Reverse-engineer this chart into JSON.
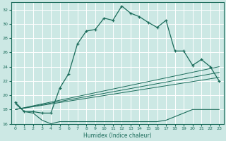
{
  "xlabel": "Humidex (Indice chaleur)",
  "bg_color": "#cce8e4",
  "grid_color": "#ffffff",
  "line_color": "#1a6b5a",
  "xlim": [
    -0.5,
    23.5
  ],
  "ylim": [
    16,
    33
  ],
  "yticks": [
    16,
    18,
    20,
    22,
    24,
    26,
    28,
    30,
    32
  ],
  "xticks": [
    0,
    1,
    2,
    3,
    4,
    5,
    6,
    7,
    8,
    9,
    10,
    11,
    12,
    13,
    14,
    15,
    16,
    17,
    18,
    19,
    20,
    21,
    22,
    23
  ],
  "curve1_x": [
    0,
    1,
    2,
    3,
    4,
    5,
    6,
    7,
    8,
    9,
    10,
    11,
    12,
    13,
    14,
    15,
    16,
    17,
    18,
    19,
    20,
    21,
    22,
    23
  ],
  "curve1_y": [
    19,
    17.7,
    17.7,
    17.5,
    17.5,
    21.0,
    23.0,
    27.2,
    29.0,
    29.2,
    30.8,
    30.5,
    32.5,
    31.5,
    31.0,
    30.2,
    29.5,
    30.5,
    26.2,
    26.2,
    24.2,
    25.0,
    24.0,
    22.0
  ],
  "curve2_x": [
    0,
    1,
    2,
    3,
    4,
    5,
    6,
    7,
    8,
    9,
    10,
    11,
    12,
    13,
    14,
    15,
    16,
    17,
    18,
    19,
    20,
    21,
    22,
    23
  ],
  "curve2_y": [
    18.8,
    17.7,
    17.5,
    16.5,
    16.0,
    16.3,
    16.3,
    16.3,
    16.3,
    16.3,
    16.3,
    16.3,
    16.3,
    16.3,
    16.3,
    16.3,
    16.3,
    16.5,
    17.0,
    17.5,
    18.0,
    18.0,
    18.0,
    18.0
  ],
  "curve3_x": [
    0,
    23
  ],
  "curve3_y": [
    18.0,
    24.0
  ],
  "curve4_x": [
    0,
    23
  ],
  "curve4_y": [
    18.0,
    23.2
  ],
  "curve5_x": [
    0,
    23
  ],
  "curve5_y": [
    18.0,
    22.5
  ]
}
